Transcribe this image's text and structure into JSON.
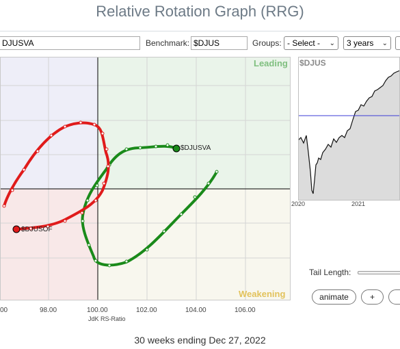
{
  "title": "Relative Rotation Graph (RRG)",
  "toolbar": {
    "symbols_value": "DJUSVA",
    "benchmark_label": "Benchmark:",
    "benchmark_value": "$DJUS",
    "groups_label": "Groups:",
    "groups_value": "- Select -",
    "period_value": "3 years"
  },
  "rrg": {
    "quadrant_leading": "Leading",
    "quadrant_weakening": "Weakening",
    "x_axis_label": "JdK RS-Ratio",
    "x_ticks": [
      "00",
      "98.00",
      "100.00",
      "102.00",
      "104.00",
      "106.00"
    ],
    "colors": {
      "green_tail": "#1a8a1a",
      "red_tail": "#e01b1b"
    }
  },
  "series_labels": {
    "green": "$DJUSVA",
    "red": "$DJUSOF"
  },
  "benchmark_panel": {
    "title": "$DJUS",
    "year_labels": [
      "2020",
      "2021"
    ]
  },
  "controls": {
    "tail_length_label": "Tail Length:",
    "animate_label": "animate",
    "plus_label": "+"
  },
  "footer": "30 weeks ending Dec 27, 2022"
}
